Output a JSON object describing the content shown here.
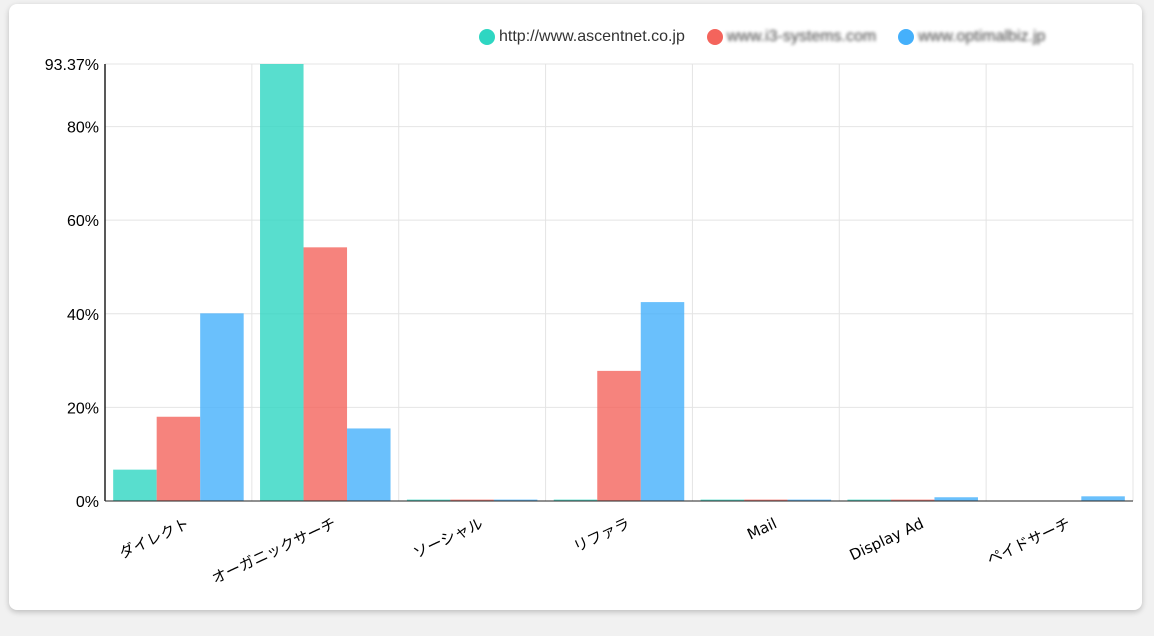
{
  "colors": {
    "series": [
      "#2ed6c2",
      "#f4645c",
      "#45b0fb"
    ],
    "grid": "#e4e4e4",
    "axis": "#222222"
  },
  "legend": {
    "position": "top-right",
    "items": [
      {
        "label": "http://www.ascentnet.co.jp",
        "blurred": false
      },
      {
        "label": "www.i3-systems.com",
        "blurred": true
      },
      {
        "label": "www.optimalbiz.jp",
        "blurred": true
      }
    ]
  },
  "chart_data": {
    "type": "bar",
    "title": "",
    "xlabel": "",
    "ylabel": "",
    "grid": true,
    "ylim": [
      0,
      93.37
    ],
    "y_ticks": [
      0,
      20,
      40,
      60,
      80,
      93.37
    ],
    "y_tick_labels": [
      "0%",
      "20%",
      "40%",
      "60%",
      "80%",
      "93.37%"
    ],
    "categories": [
      "ダイレクト",
      "オーガニックサーチ",
      "ソーシャル",
      "リファラ",
      "Mail",
      "Display Ad",
      "ペイドサーチ"
    ],
    "series": [
      {
        "name": "http://www.ascentnet.co.jp",
        "values": [
          6.7,
          93.37,
          0.3,
          0.3,
          0.3,
          0.3,
          0
        ]
      },
      {
        "name": "www.i3-systems.com",
        "values": [
          18.0,
          54.2,
          0.3,
          27.8,
          0.3,
          0.3,
          0
        ]
      },
      {
        "name": "www.optimalbiz.jp",
        "values": [
          40.1,
          15.5,
          0.3,
          42.5,
          0.3,
          0.8,
          1.0
        ]
      }
    ]
  }
}
